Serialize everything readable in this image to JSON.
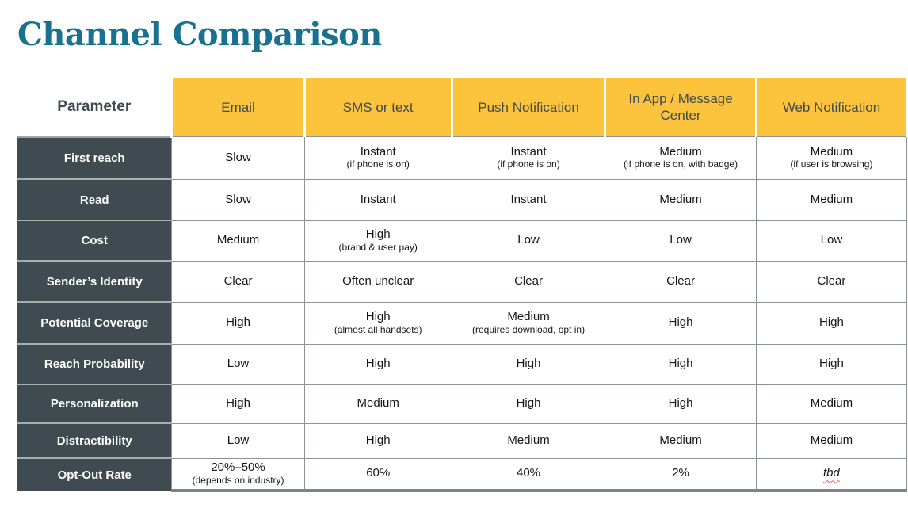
{
  "title": "Channel Comparison",
  "colors": {
    "title_teal": "#17718F",
    "header_yellow": "#FCC43D",
    "label_slate": "#3F4B50",
    "border_gray": "#8D9295",
    "squiggle_red": "#DD5F5F"
  },
  "table": {
    "param_header": "Parameter",
    "columns": [
      "Email",
      "SMS or text",
      "Push Notification",
      "In App / Message Center",
      "Web Notification"
    ],
    "rows": [
      {
        "label": "First reach",
        "cells": [
          {
            "main": "Slow"
          },
          {
            "main": "Instant",
            "note": "(if phone is on)"
          },
          {
            "main": "Instant",
            "note": "(if phone is on)"
          },
          {
            "main": "Medium",
            "note": "(if phone is on, with badge)"
          },
          {
            "main": "Medium",
            "note": "(if user is browsing)"
          }
        ]
      },
      {
        "label": "Read",
        "cells": [
          {
            "main": "Slow"
          },
          {
            "main": "Instant"
          },
          {
            "main": "Instant"
          },
          {
            "main": "Medium"
          },
          {
            "main": "Medium"
          }
        ]
      },
      {
        "label": "Cost",
        "cells": [
          {
            "main": "Medium"
          },
          {
            "main": "High",
            "note": "(brand & user pay)"
          },
          {
            "main": "Low"
          },
          {
            "main": "Low"
          },
          {
            "main": "Low"
          }
        ]
      },
      {
        "label": "Sender’s Identity",
        "cells": [
          {
            "main": "Clear"
          },
          {
            "main": "Often unclear"
          },
          {
            "main": "Clear"
          },
          {
            "main": "Clear"
          },
          {
            "main": "Clear"
          }
        ]
      },
      {
        "label": "Potential Coverage",
        "cells": [
          {
            "main": "High"
          },
          {
            "main": "High",
            "note": "(almost all handsets)"
          },
          {
            "main": "Medium",
            "note": "(requires download, opt in)"
          },
          {
            "main": "High"
          },
          {
            "main": "High"
          }
        ]
      },
      {
        "label": "Reach Probability",
        "cells": [
          {
            "main": "Low"
          },
          {
            "main": "High"
          },
          {
            "main": "High"
          },
          {
            "main": "High"
          },
          {
            "main": "High"
          }
        ]
      },
      {
        "label": "Personalization",
        "cells": [
          {
            "main": "High"
          },
          {
            "main": "Medium"
          },
          {
            "main": "High"
          },
          {
            "main": "High"
          },
          {
            "main": "Medium"
          }
        ]
      },
      {
        "label": "Distractibility",
        "cells": [
          {
            "main": "Low"
          },
          {
            "main": "High"
          },
          {
            "main": "Medium"
          },
          {
            "main": "Medium"
          },
          {
            "main": "Medium"
          }
        ]
      },
      {
        "label": "Opt-Out Rate",
        "cells": [
          {
            "main": "20%–50%",
            "note": "(depends on industry)"
          },
          {
            "main": "60%"
          },
          {
            "main": "40%"
          },
          {
            "main": "2%"
          },
          {
            "main": "tbd",
            "tbd": true
          }
        ]
      }
    ]
  }
}
